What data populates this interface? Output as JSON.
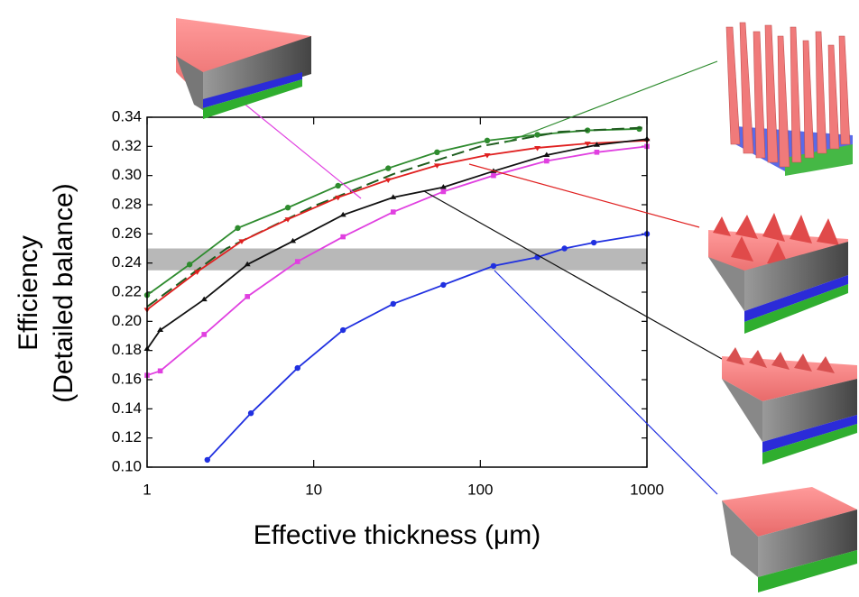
{
  "chart_data": {
    "type": "line",
    "xlabel": "Effective thickness (μm)",
    "ylabel": [
      "Efficiency",
      "(Detailed balance)"
    ],
    "xscale": "log",
    "xlim": [
      1,
      1000
    ],
    "xticks": [
      1,
      10,
      100,
      1000
    ],
    "ylim": [
      0.1,
      0.34
    ],
    "yticks": [
      {
        "value": 0.1,
        "label": "0.10"
      },
      0.12,
      0.14,
      0.16,
      0.18,
      {
        "value": 0.2,
        "label": "0.20"
      },
      0.22,
      0.24,
      0.26,
      0.28,
      {
        "value": 0.3,
        "label": "0.30"
      },
      0.32,
      0.34
    ],
    "band": [
      0.235,
      0.25
    ],
    "band_color": "#b8b8b8",
    "series": [
      {
        "color": "#2e8b2e",
        "marker": "circle",
        "x": [
          1,
          1.8,
          3.5,
          7,
          14,
          28,
          55,
          110,
          220,
          440,
          900
        ],
        "values": [
          0.218,
          0.239,
          0.264,
          0.278,
          0.293,
          0.305,
          0.316,
          0.324,
          0.328,
          0.331,
          0.332
        ]
      },
      {
        "color": "#1f5c1f",
        "marker": "none",
        "dash": true,
        "x": [
          1,
          3,
          10,
          30,
          100,
          300,
          1000
        ],
        "values": [
          0.21,
          0.25,
          0.279,
          0.301,
          0.32,
          0.33,
          0.333
        ]
      },
      {
        "color": "#e02020",
        "marker": "triangle-down",
        "x": [
          1,
          2,
          3.7,
          7,
          14,
          28,
          55,
          110,
          220,
          440,
          1000
        ],
        "values": [
          0.208,
          0.234,
          0.255,
          0.27,
          0.285,
          0.297,
          0.307,
          0.314,
          0.319,
          0.322,
          0.324
        ]
      },
      {
        "color": "#111111",
        "marker": "triangle-up",
        "x": [
          1,
          1.2,
          2.2,
          4,
          7.5,
          15,
          30,
          60,
          120,
          250,
          500,
          1000
        ],
        "values": [
          0.181,
          0.194,
          0.215,
          0.239,
          0.255,
          0.273,
          0.285,
          0.292,
          0.303,
          0.314,
          0.321,
          0.325
        ]
      },
      {
        "color": "#e040e0",
        "marker": "square",
        "x": [
          1,
          1.2,
          2.2,
          4,
          8,
          15,
          30,
          60,
          120,
          250,
          500,
          1000
        ],
        "values": [
          0.163,
          0.166,
          0.191,
          0.217,
          0.241,
          0.258,
          0.275,
          0.289,
          0.3,
          0.31,
          0.316,
          0.32
        ]
      },
      {
        "color": "#2030e0",
        "marker": "circle",
        "x": [
          2.3,
          4.2,
          8,
          15,
          30,
          60,
          120,
          220,
          320,
          480,
          1000
        ],
        "values": [
          0.105,
          0.137,
          0.168,
          0.194,
          0.212,
          0.225,
          0.238,
          0.244,
          0.25,
          0.254,
          0.26
        ]
      }
    ]
  }
}
